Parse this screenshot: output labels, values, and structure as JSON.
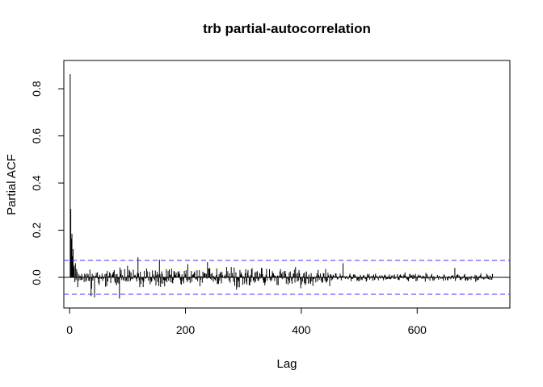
{
  "chart_data": {
    "type": "bar",
    "title": "trb partial-autocorrelation",
    "xlabel": "Lag",
    "ylabel": "Partial ACF",
    "xlim": [
      -10,
      760
    ],
    "ylim": [
      -0.13,
      0.92
    ],
    "xticks": [
      0,
      200,
      400,
      600
    ],
    "yticks": [
      0.0,
      0.2,
      0.4,
      0.6,
      0.8
    ],
    "xtick_labels": [
      "0",
      "200",
      "400",
      "600"
    ],
    "ytick_labels": [
      "0.0",
      "0.2",
      "0.4",
      "0.6",
      "0.8"
    ],
    "confidence_bound": 0.072,
    "confidence_color": "#3333ff",
    "bar_color": "#000000",
    "max_lag": 730,
    "lag_step": 1,
    "notable_lags": [
      {
        "lag": 1,
        "value": 0.862
      },
      {
        "lag": 2,
        "value": 0.29
      },
      {
        "lag": 3,
        "value": 0.165
      },
      {
        "lag": 4,
        "value": 0.185
      },
      {
        "lag": 5,
        "value": 0.09
      },
      {
        "lag": 6,
        "value": 0.12
      },
      {
        "lag": 7,
        "value": 0.04
      },
      {
        "lag": 8,
        "value": 0.05
      },
      {
        "lag": 10,
        "value": 0.06
      },
      {
        "lag": 12,
        "value": 0.035
      },
      {
        "lag": 37,
        "value": -0.08
      },
      {
        "lag": 43,
        "value": -0.085
      },
      {
        "lag": 86,
        "value": -0.09
      },
      {
        "lag": 118,
        "value": 0.085
      },
      {
        "lag": 155,
        "value": 0.075
      },
      {
        "lag": 238,
        "value": 0.065
      },
      {
        "lag": 472,
        "value": 0.06
      },
      {
        "lag": 665,
        "value": 0.04
      }
    ],
    "noise_profile": [
      {
        "from": 13,
        "to": 450,
        "amplitude": 0.04
      },
      {
        "from": 451,
        "to": 730,
        "amplitude": 0.018
      }
    ]
  }
}
